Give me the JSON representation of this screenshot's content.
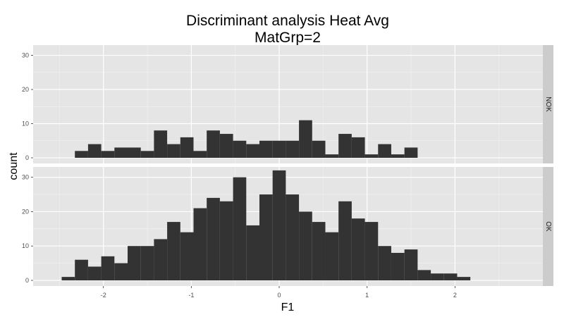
{
  "chart_data": {
    "type": "bar",
    "title": "Discriminant analysis Heat Avg",
    "subtitle": "MatGrp=2",
    "xlabel": "F1",
    "ylabel": "count",
    "xlim": [
      -2.8,
      3.0
    ],
    "ylim": [
      0,
      33
    ],
    "x_ticks": [
      -2,
      -1,
      0,
      1,
      2
    ],
    "y_ticks": [
      0,
      10,
      20,
      30
    ],
    "bin_width": 0.15,
    "grid": true,
    "legend": "none",
    "panels": [
      {
        "name": "NOK",
        "bins": [
          {
            "x": -2.25,
            "count": 2
          },
          {
            "x": -2.1,
            "count": 4
          },
          {
            "x": -1.95,
            "count": 2
          },
          {
            "x": -1.8,
            "count": 3
          },
          {
            "x": -1.65,
            "count": 3
          },
          {
            "x": -1.5,
            "count": 2
          },
          {
            "x": -1.35,
            "count": 8
          },
          {
            "x": -1.2,
            "count": 4
          },
          {
            "x": -1.05,
            "count": 6
          },
          {
            "x": -0.9,
            "count": 2
          },
          {
            "x": -0.75,
            "count": 8
          },
          {
            "x": -0.6,
            "count": 7
          },
          {
            "x": -0.45,
            "count": 5
          },
          {
            "x": -0.3,
            "count": 4
          },
          {
            "x": -0.15,
            "count": 5
          },
          {
            "x": 0.0,
            "count": 5
          },
          {
            "x": 0.15,
            "count": 5
          },
          {
            "x": 0.3,
            "count": 11
          },
          {
            "x": 0.45,
            "count": 5
          },
          {
            "x": 0.6,
            "count": 1
          },
          {
            "x": 0.75,
            "count": 7
          },
          {
            "x": 0.9,
            "count": 6
          },
          {
            "x": 1.05,
            "count": 1
          },
          {
            "x": 1.2,
            "count": 4
          },
          {
            "x": 1.35,
            "count": 1
          },
          {
            "x": 1.5,
            "count": 3
          }
        ]
      },
      {
        "name": "OK",
        "bins": [
          {
            "x": -2.4,
            "count": 1
          },
          {
            "x": -2.25,
            "count": 6
          },
          {
            "x": -2.1,
            "count": 4
          },
          {
            "x": -1.95,
            "count": 7
          },
          {
            "x": -1.8,
            "count": 5
          },
          {
            "x": -1.65,
            "count": 10
          },
          {
            "x": -1.5,
            "count": 10
          },
          {
            "x": -1.35,
            "count": 12
          },
          {
            "x": -1.2,
            "count": 17
          },
          {
            "x": -1.05,
            "count": 14
          },
          {
            "x": -0.9,
            "count": 21
          },
          {
            "x": -0.75,
            "count": 24
          },
          {
            "x": -0.6,
            "count": 23
          },
          {
            "x": -0.45,
            "count": 30
          },
          {
            "x": -0.3,
            "count": 16
          },
          {
            "x": -0.15,
            "count": 25
          },
          {
            "x": 0.0,
            "count": 32
          },
          {
            "x": 0.15,
            "count": 25
          },
          {
            "x": 0.3,
            "count": 20
          },
          {
            "x": 0.45,
            "count": 17
          },
          {
            "x": 0.6,
            "count": 14
          },
          {
            "x": 0.75,
            "count": 23
          },
          {
            "x": 0.9,
            "count": 18
          },
          {
            "x": 1.05,
            "count": 17
          },
          {
            "x": 1.2,
            "count": 10
          },
          {
            "x": 1.35,
            "count": 8
          },
          {
            "x": 1.5,
            "count": 9
          },
          {
            "x": 1.65,
            "count": 3
          },
          {
            "x": 1.8,
            "count": 2
          },
          {
            "x": 1.95,
            "count": 2
          },
          {
            "x": 2.1,
            "count": 1
          }
        ]
      }
    ]
  },
  "colors": {
    "panel_background": "#e5e5e5",
    "grid_major": "#ffffff",
    "grid_minor": "#f2f2f2",
    "bar_fill": "#333333",
    "strip_background": "#cccccc",
    "tick_text": "#4d4d4d"
  }
}
